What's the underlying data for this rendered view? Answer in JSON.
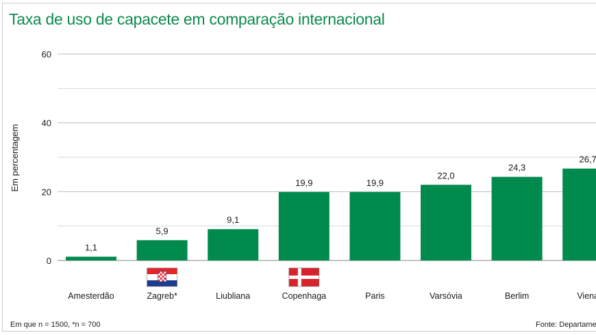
{
  "chart_data": {
    "type": "bar",
    "title": "Taxa de uso de capacete em comparação internacional",
    "ylabel": "Em percentagem",
    "xlabel": "",
    "ylim": [
      0,
      60
    ],
    "yticks": [
      0,
      20,
      40,
      60
    ],
    "categories": [
      "Amesterdão",
      "Zagreb*",
      "Liubliana",
      "Copenhaga",
      "Paris",
      "Varsóvia",
      "Berlim",
      "Viena"
    ],
    "values": [
      1.1,
      5.9,
      9.1,
      19.9,
      19.9,
      22.0,
      24.3,
      26.7
    ],
    "value_labels": [
      "1,1",
      "5,9",
      "9,1",
      "19,9",
      "19,9",
      "22,0",
      "24,3",
      "26,7"
    ],
    "flags": [
      {
        "category": "Zagreb*",
        "icon": "croatia-flag-icon"
      },
      {
        "category": "Copenhaga",
        "icon": "denmark-flag-icon"
      }
    ],
    "bar_color": "#008a4e",
    "grid": true
  },
  "footnote": "Em que n = 1500, *n = 700",
  "source": "Fonte: Departamento d"
}
